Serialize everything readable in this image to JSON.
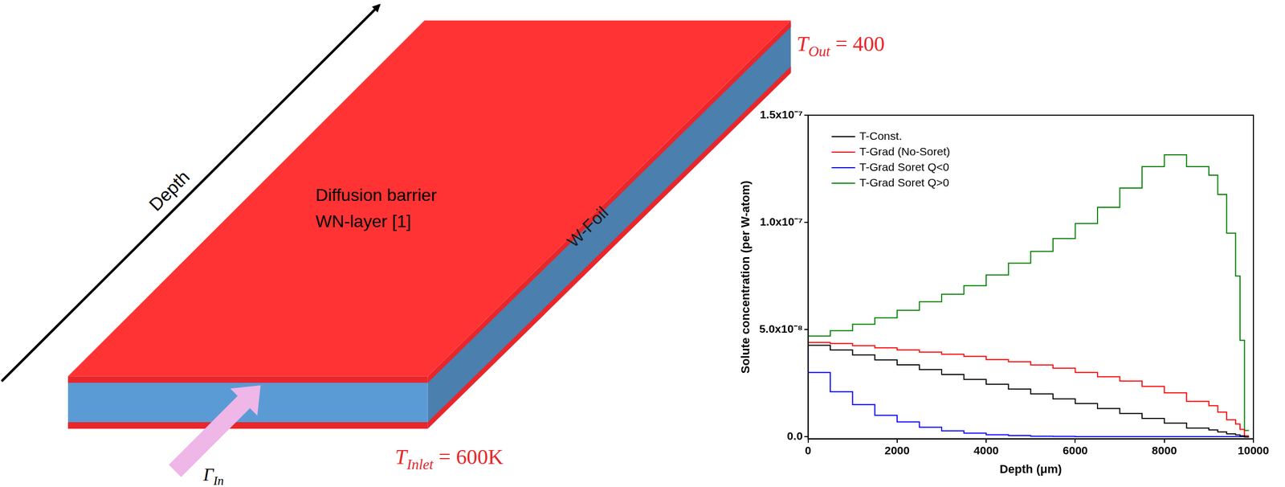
{
  "diagram": {
    "axis_label": "Depth",
    "layer_label": [
      "Diffusion barrier",
      "WN-layer [1]"
    ],
    "foil_label": "W-Foil",
    "outlet_temperature": {
      "symbol": "T",
      "subscript": "Out",
      "text": " = 400"
    },
    "inlet_temperature": {
      "symbol": "T",
      "subscript": "Inlet",
      "text": " = 600K"
    },
    "flux": {
      "symbol": "Γ",
      "subscript": "In"
    }
  },
  "chart_data": {
    "type": "line",
    "x_label": "Depth (μm)",
    "y_label": "Solute concentration (per W-atom)",
    "x": [
      0,
      500,
      1000,
      1500,
      2000,
      2500,
      3000,
      3500,
      4000,
      4500,
      5000,
      5500,
      6000,
      6500,
      7000,
      7500,
      8000,
      8500,
      9000,
      9200,
      9400,
      9600,
      9700,
      9800,
      9900
    ],
    "series": [
      {
        "name": "T-Const.",
        "color": "#000000",
        "values": [
          4.5e-08,
          4.27e-08,
          4.05e-08,
          3.82e-08,
          3.59e-08,
          3.36e-08,
          3.14e-08,
          2.91e-08,
          2.68e-08,
          2.45e-08,
          2.23e-08,
          2e-08,
          1.77e-08,
          1.55e-08,
          1.32e-08,
          1.09e-08,
          8.6e-09,
          6.4e-09,
          4.1e-09,
          3.2e-09,
          2.3e-09,
          1.4e-09,
          9e-10,
          5e-10,
          0
        ]
      },
      {
        "name": "T-Grad (No-Soret)",
        "color": "#ff0000",
        "values": [
          4.5e-08,
          4.4e-08,
          4.35e-08,
          4.25e-08,
          4.15e-08,
          4.05e-08,
          3.95e-08,
          3.85e-08,
          3.75e-08,
          3.6e-08,
          3.5e-08,
          3.35e-08,
          3.2e-08,
          3e-08,
          2.8e-08,
          2.6e-08,
          2.35e-08,
          2.05e-08,
          1.65e-08,
          1.45e-08,
          1.15e-08,
          8e-09,
          6e-09,
          3.5e-09,
          5e-10
        ]
      },
      {
        "name": "T-Grad Soret Q<0",
        "color": "#0000ff",
        "values": [
          4.2e-08,
          3e-08,
          2.1e-08,
          1.5e-08,
          1e-08,
          7e-09,
          4.5e-09,
          2.8e-09,
          1.7e-09,
          1e-09,
          6e-10,
          3e-10,
          2e-10,
          1e-10,
          1e-10,
          1e-10,
          1e-10,
          1e-10,
          1e-10,
          1e-10,
          1e-10,
          1e-10,
          1e-10,
          1e-10,
          0
        ]
      },
      {
        "name": "T-Grad Soret Q>0",
        "color": "#008000",
        "values": [
          4.5e-08,
          4.7e-08,
          4.95e-08,
          5.25e-08,
          5.55e-08,
          5.9e-08,
          6.3e-08,
          6.65e-08,
          7.05e-08,
          7.55e-08,
          8.1e-08,
          8.65e-08,
          9.25e-08,
          9.95e-08,
          1.07e-07,
          1.16e-07,
          1.26e-07,
          1.315e-07,
          1.26e-07,
          1.22e-07,
          1.13e-07,
          9.5e-08,
          7.5e-08,
          4.5e-08,
          3e-09
        ]
      }
    ],
    "xlim": [
      0,
      10000
    ],
    "xticks": [
      0,
      2000,
      4000,
      6000,
      8000,
      10000
    ],
    "ylim": [
      -1e-09,
      1.5e-07
    ],
    "yticks": [
      {
        "value": 0,
        "label": "0.0"
      },
      {
        "value": 5e-08,
        "label": "5.0x10⁻⁸"
      },
      {
        "value": 1e-07,
        "label": "1.0x10⁻⁷"
      },
      {
        "value": 1.5e-07,
        "label": "1.5x10⁻⁷"
      }
    ],
    "grid": false,
    "legend": "upper left",
    "line_style": "stepped"
  }
}
